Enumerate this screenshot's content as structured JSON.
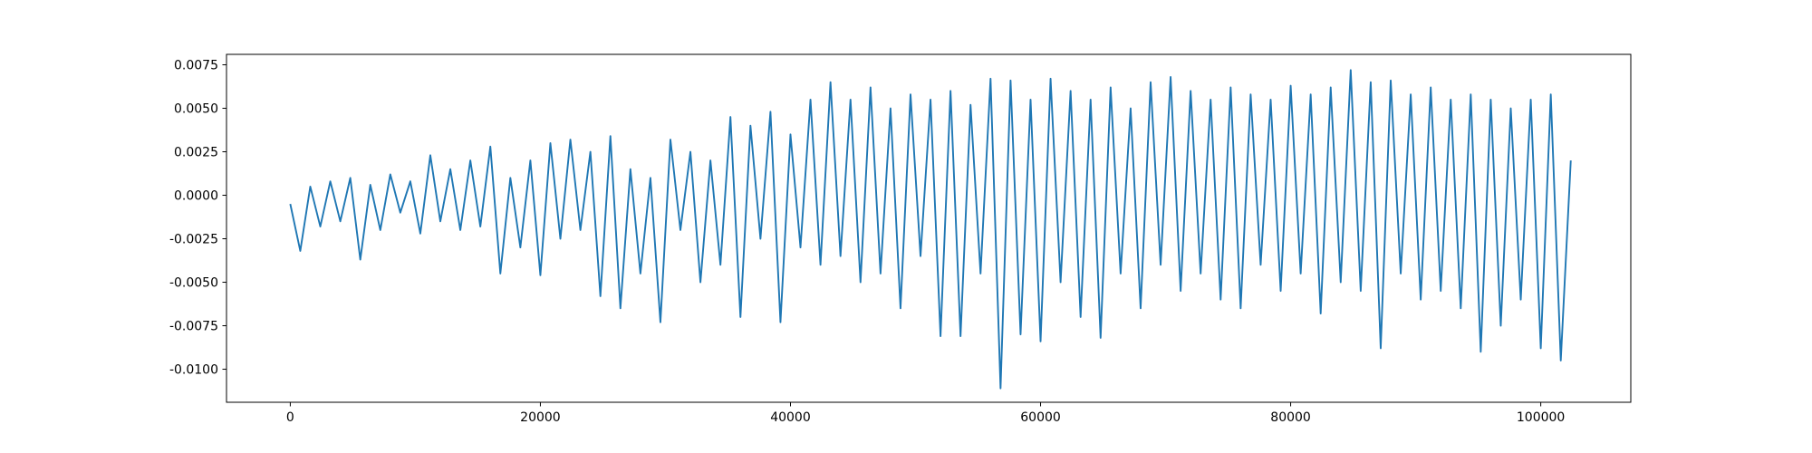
{
  "chart_data": {
    "type": "line",
    "x": [
      0,
      800,
      1600,
      2400,
      3200,
      4000,
      4800,
      5600,
      6400,
      7200,
      8000,
      8800,
      9600,
      10400,
      11200,
      12000,
      12800,
      13600,
      14400,
      15200,
      16000,
      16800,
      17600,
      18400,
      19200,
      20000,
      20800,
      21600,
      22400,
      23200,
      24000,
      24800,
      25600,
      26400,
      27200,
      28000,
      28800,
      29600,
      30400,
      31200,
      32000,
      32800,
      33600,
      34400,
      35200,
      36000,
      36800,
      37600,
      38400,
      39200,
      40000,
      40800,
      41600,
      42400,
      43200,
      44000,
      44800,
      45600,
      46400,
      47200,
      48000,
      48800,
      49600,
      50400,
      51200,
      52000,
      52800,
      53600,
      54400,
      55200,
      56000,
      56800,
      57600,
      58400,
      59200,
      60000,
      60800,
      61600,
      62400,
      63200,
      64000,
      64800,
      65600,
      66400,
      67200,
      68000,
      68800,
      69600,
      70400,
      71200,
      72000,
      72800,
      73600,
      74400,
      75200,
      76000,
      76800,
      77600,
      78400,
      79200,
      80000,
      80800,
      81600,
      82400,
      83200,
      84000,
      84800,
      85600,
      86400,
      87200,
      88000,
      88800,
      89600,
      90400,
      91200,
      92000,
      92800,
      93600,
      94400,
      95200,
      96000,
      96800,
      97600,
      98400,
      99200,
      100000,
      100800,
      101600,
      102400
    ],
    "series": [
      {
        "color": "#1f77b4",
        "values": [
          -0.0005,
          -0.0032,
          0.0005,
          -0.0018,
          0.0008,
          -0.0015,
          0.001,
          -0.0037,
          0.0006,
          -0.002,
          0.0012,
          -0.001,
          0.0008,
          -0.0022,
          0.0023,
          -0.0015,
          0.0015,
          -0.002,
          0.002,
          -0.0018,
          0.0028,
          -0.0045,
          0.001,
          -0.003,
          0.002,
          -0.0046,
          0.003,
          -0.0025,
          0.0032,
          -0.002,
          0.0025,
          -0.0058,
          0.0034,
          -0.0065,
          0.0015,
          -0.0045,
          0.001,
          -0.0073,
          0.0032,
          -0.002,
          0.0025,
          -0.005,
          0.002,
          -0.004,
          0.0045,
          -0.007,
          0.004,
          -0.0025,
          0.0048,
          -0.0073,
          0.0035,
          -0.003,
          0.0055,
          -0.004,
          0.0065,
          -0.0035,
          0.0055,
          -0.005,
          0.0062,
          -0.0045,
          0.005,
          -0.0065,
          0.0058,
          -0.0035,
          0.0055,
          -0.0081,
          0.006,
          -0.0081,
          0.0052,
          -0.0045,
          0.0067,
          -0.0111,
          0.0066,
          -0.008,
          0.0055,
          -0.0084,
          0.0067,
          -0.005,
          0.006,
          -0.007,
          0.0055,
          -0.0082,
          0.0062,
          -0.0045,
          0.005,
          -0.0065,
          0.0065,
          -0.004,
          0.0068,
          -0.0055,
          0.006,
          -0.0045,
          0.0055,
          -0.006,
          0.0062,
          -0.0065,
          0.0058,
          -0.004,
          0.0055,
          -0.0055,
          0.0063,
          -0.0045,
          0.0058,
          -0.0068,
          0.0062,
          -0.005,
          0.0072,
          -0.0055,
          0.0065,
          -0.0088,
          0.0066,
          -0.0045,
          0.0058,
          -0.006,
          0.0062,
          -0.0055,
          0.0055,
          -0.0065,
          0.0058,
          -0.009,
          0.0055,
          -0.0075,
          0.005,
          -0.006,
          0.0055,
          -0.0088,
          0.0058,
          -0.0095,
          0.002
        ]
      }
    ],
    "xlim": [
      -5100,
      107200
    ],
    "xticks": [
      0,
      20000,
      40000,
      60000,
      80000,
      100000
    ],
    "ylim": [
      -0.0119,
      0.0081
    ],
    "yticks": [
      {
        "value": -0.01,
        "label": "-0.0100"
      },
      -0.0075,
      {
        "value": -0.005,
        "label": "-0.0050"
      },
      -0.0025,
      {
        "value": 0,
        "label": "0.0000"
      },
      0.0025,
      {
        "value": 0.005,
        "label": "0.0050"
      },
      0.0075
    ]
  }
}
